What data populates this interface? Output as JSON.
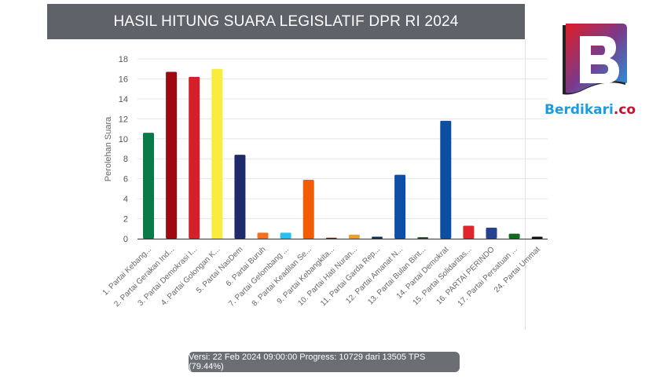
{
  "header": {
    "title": "HASIL HITUNG SUARA LEGISLATIF DPR RI 2024"
  },
  "logo": {
    "text_main": "Berdikari",
    "text_suffix": ".co"
  },
  "status": {
    "text": "Versi: 22 Feb 2024 09:00:00 Progress: 10729 dari 13505 TPS (79.44%)"
  },
  "chart_data": {
    "type": "bar",
    "title": "HASIL HITUNG SUARA LEGISLATIF DPR RI 2024",
    "xlabel": "",
    "ylabel": "Perolehan Suara",
    "ylim": [
      0,
      18
    ],
    "yticks": [
      0,
      2,
      4,
      6,
      8,
      10,
      12,
      14,
      16,
      18
    ],
    "grid": true,
    "categories": [
      "1. Partai Kebang...",
      "2. Partai Gerakan Ind...",
      "3. Partai Demokrasi I...",
      "4. Partai Golongan K...",
      "5. Partai NasDem",
      "6. Partai Buruh",
      "7. Partai Gelombang ...",
      "8. Partai Keadilan Se...",
      "9. Partai Kebangkita...",
      "10. Partai Hati Nuran...",
      "11. Partai Garda Rep...",
      "12. Partai Amanat N...",
      "13. Partai Bulan Bint...",
      "14. Partai Demokrat",
      "15. Partai Solidaritas...",
      "16. PARTAI PERINDO",
      "17. Partai Persatuan ...",
      "24. Partai Ummat"
    ],
    "values": [
      10.6,
      16.7,
      16.2,
      17.0,
      8.4,
      0.6,
      0.6,
      5.9,
      0.1,
      0.4,
      0.2,
      6.4,
      0.15,
      11.8,
      1.3,
      1.1,
      0.5,
      0.2
    ],
    "colors": [
      "#0a7a4a",
      "#9e0b0f",
      "#d4202b",
      "#f9ec3a",
      "#1f2a6b",
      "#f37021",
      "#29c0ef",
      "#f25c05",
      "#8b1a1a",
      "#f0a020",
      "#14305c",
      "#0d4ea6",
      "#1d4d2c",
      "#0b4ea2",
      "#e3242b",
      "#26418f",
      "#0f6b1e",
      "#111111"
    ]
  }
}
